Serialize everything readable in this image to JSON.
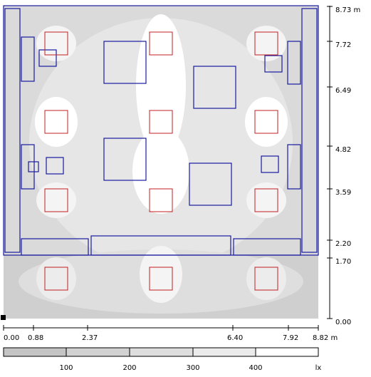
{
  "y_axis": {
    "labels": [
      "8.73 m",
      "7.72",
      "6.49",
      "4.82",
      "3.59",
      "2.20",
      "1.70",
      "0.00"
    ]
  },
  "x_axis": {
    "labels": [
      "0.00",
      "0.88",
      "2.37",
      "6.40",
      "7.92",
      "8.82 m"
    ]
  },
  "legend": {
    "labels": [
      "100",
      "200",
      "300",
      "400",
      "lx"
    ]
  }
}
